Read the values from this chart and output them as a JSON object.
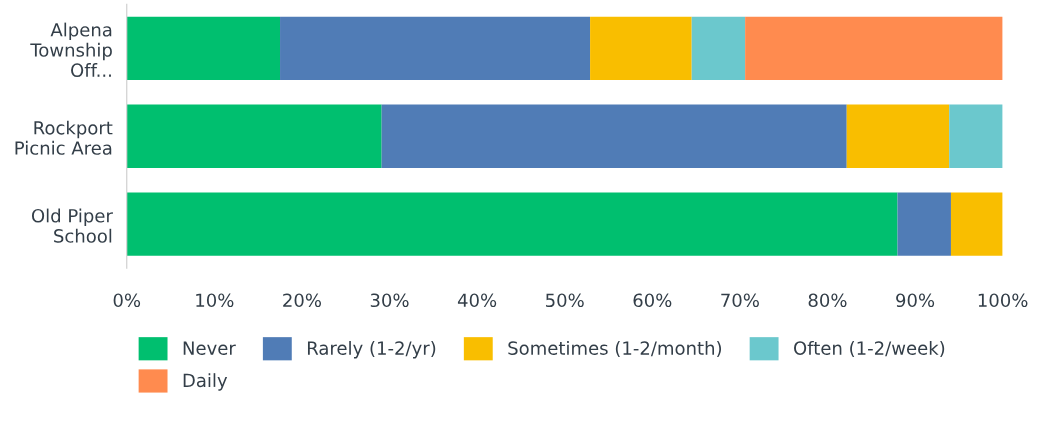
{
  "chart_data": {
    "type": "bar",
    "orientation": "horizontal",
    "stacked": true,
    "categories": [
      "Alpena\nTownship\nOff...",
      "Rockport\nPicnic Area",
      "Old Piper\nSchool"
    ],
    "series": [
      {
        "name": "Never",
        "color": "#00bf6f",
        "values": [
          17.5,
          29.1,
          88.0
        ]
      },
      {
        "name": "Rarely (1-2/yr)",
        "color": "#507cb6",
        "values": [
          35.4,
          53.1,
          6.1
        ]
      },
      {
        "name": "Sometimes (1-2/month)",
        "color": "#f9be00",
        "values": [
          11.6,
          11.7,
          5.9
        ]
      },
      {
        "name": "Often (1-2/week)",
        "color": "#6bc8cd",
        "values": [
          6.1,
          6.1,
          null
        ]
      },
      {
        "name": "Daily",
        "color": "#ff8b4f",
        "values": [
          29.4,
          null,
          null
        ]
      }
    ],
    "xlim": [
      0,
      100
    ],
    "xticks": [
      {
        "value": 0,
        "label": "0%"
      },
      {
        "value": 10,
        "label": "10%"
      },
      {
        "value": 20,
        "label": "20%"
      },
      {
        "value": 30,
        "label": "30%"
      },
      {
        "value": 40,
        "label": "40%"
      },
      {
        "value": 50,
        "label": "50%"
      },
      {
        "value": 60,
        "label": "60%"
      },
      {
        "value": 70,
        "label": "70%"
      },
      {
        "value": 80,
        "label": "80%"
      },
      {
        "value": 90,
        "label": "90%"
      },
      {
        "value": 100,
        "label": "100%"
      }
    ],
    "grid": false,
    "legend": "bottom"
  }
}
